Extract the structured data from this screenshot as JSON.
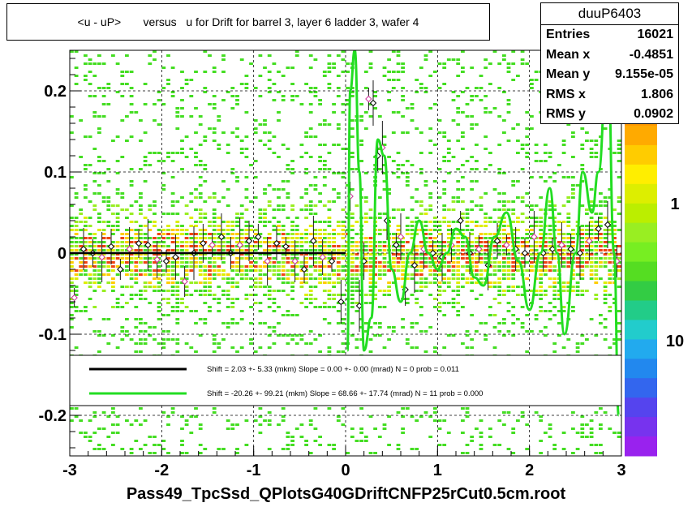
{
  "title": "<u - uP>       versus   u for Drift for barrel 3, layer 6 ladder 3, wafer 4",
  "stats": {
    "name": "duuP6403",
    "rows": [
      {
        "label": "Entries",
        "value": "16021"
      },
      {
        "label": "Mean x",
        "value": "-0.4851"
      },
      {
        "label": "Mean y",
        "value": "9.155e-05"
      },
      {
        "label": "RMS x",
        "value": "1.806"
      },
      {
        "label": "RMS y",
        "value": "0.0902"
      }
    ]
  },
  "footer": "Pass49_TpcSsd_QPlotsG40GDriftCNFP25rCut0.5cm.root",
  "legend": [
    {
      "color": "#000000",
      "text": "Shift =     2.03 +- 5.33 (mkm) Slope =     0.00 +- 0.00 (mrad)  N = 0 prob = 0.011"
    },
    {
      "color": "#22dd22",
      "text": "Shift =   -20.26 +- 99.21 (mkm) Slope =    68.66 +- 17.74 (mrad)  N = 11 prob = 0.000"
    }
  ],
  "colors": {
    "heat_low": "#33dd33",
    "heat_mid": "#ddee00",
    "heat_high": "#ee3311",
    "fit_black": "#000000",
    "fit_green": "#22dd22"
  },
  "chart_data": {
    "type": "heatmap",
    "xlim": [
      -3,
      3
    ],
    "ylim": [
      -0.25,
      0.25
    ],
    "x_ticks": [
      "-3",
      "-2",
      "-1",
      "0",
      "1",
      "2",
      "3"
    ],
    "y_ticks": [
      "0.2",
      "0.1",
      "0",
      "-0.1",
      "-0.2"
    ],
    "z_ticks": [
      "1",
      "10"
    ],
    "profile_points": [
      {
        "x": -2.95,
        "y": -0.055
      },
      {
        "x": -2.85,
        "y": 0.005
      },
      {
        "x": -2.75,
        "y": 0.0
      },
      {
        "x": -2.65,
        "y": -0.005
      },
      {
        "x": -2.55,
        "y": 0.008
      },
      {
        "x": -2.45,
        "y": -0.02
      },
      {
        "x": -2.35,
        "y": 0.005
      },
      {
        "x": -2.25,
        "y": 0.012
      },
      {
        "x": -2.15,
        "y": 0.01
      },
      {
        "x": -2.05,
        "y": -0.008
      },
      {
        "x": -1.95,
        "y": -0.01
      },
      {
        "x": -1.85,
        "y": -0.005
      },
      {
        "x": -1.75,
        "y": -0.035
      },
      {
        "x": -1.65,
        "y": 0.0
      },
      {
        "x": -1.55,
        "y": 0.012
      },
      {
        "x": -1.45,
        "y": 0.01
      },
      {
        "x": -1.35,
        "y": 0.02
      },
      {
        "x": -1.25,
        "y": 0.0
      },
      {
        "x": -1.15,
        "y": 0.01
      },
      {
        "x": -1.05,
        "y": 0.015
      },
      {
        "x": -0.95,
        "y": 0.02
      },
      {
        "x": -0.85,
        "y": -0.01
      },
      {
        "x": -0.75,
        "y": 0.012
      },
      {
        "x": -0.65,
        "y": 0.008
      },
      {
        "x": -0.55,
        "y": -0.01
      },
      {
        "x": -0.45,
        "y": -0.02
      },
      {
        "x": -0.35,
        "y": 0.015
      },
      {
        "x": -0.25,
        "y": -0.005
      },
      {
        "x": -0.15,
        "y": -0.01
      },
      {
        "x": -0.05,
        "y": -0.06
      },
      {
        "x": 0.05,
        "y": 0.07
      },
      {
        "x": 0.15,
        "y": -0.065
      },
      {
        "x": 0.2,
        "y": -0.01
      },
      {
        "x": 0.25,
        "y": 0.19
      },
      {
        "x": 0.3,
        "y": 0.185
      },
      {
        "x": 0.35,
        "y": 0.12
      },
      {
        "x": 0.4,
        "y": 0.13
      },
      {
        "x": 0.45,
        "y": 0.04
      },
      {
        "x": 0.55,
        "y": 0.01
      },
      {
        "x": 0.6,
        "y": 0.02
      },
      {
        "x": 0.65,
        "y": -0.045
      },
      {
        "x": 0.75,
        "y": -0.015
      },
      {
        "x": 0.85,
        "y": 0.005
      },
      {
        "x": 0.95,
        "y": 0.0
      },
      {
        "x": 1.05,
        "y": -0.005
      },
      {
        "x": 1.15,
        "y": 0.01
      },
      {
        "x": 1.25,
        "y": 0.04
      },
      {
        "x": 1.35,
        "y": 0.0
      },
      {
        "x": 1.45,
        "y": 0.005
      },
      {
        "x": 1.55,
        "y": -0.015
      },
      {
        "x": 1.65,
        "y": 0.015
      },
      {
        "x": 1.75,
        "y": 0.01
      },
      {
        "x": 1.85,
        "y": 0.005
      },
      {
        "x": 1.95,
        "y": 0.0
      },
      {
        "x": 2.05,
        "y": 0.02
      },
      {
        "x": 2.15,
        "y": 0.0
      },
      {
        "x": 2.25,
        "y": 0.005
      },
      {
        "x": 2.35,
        "y": 0.01
      },
      {
        "x": 2.45,
        "y": 0.005
      },
      {
        "x": 2.55,
        "y": 0.0
      },
      {
        "x": 2.65,
        "y": 0.015
      },
      {
        "x": 2.75,
        "y": 0.03
      },
      {
        "x": 2.85,
        "y": 0.035
      },
      {
        "x": 2.95,
        "y": -0.01
      }
    ],
    "fit_black": {
      "x_from": -3.0,
      "x_to": 0.0,
      "y": 0.0
    },
    "fit_green_points": [
      {
        "x": 0.02,
        "y": -0.12
      },
      {
        "x": 0.05,
        "y": 0.2
      },
      {
        "x": 0.1,
        "y": 0.25
      },
      {
        "x": 0.15,
        "y": 0.1
      },
      {
        "x": 0.2,
        "y": -0.12
      },
      {
        "x": 0.28,
        "y": -0.08
      },
      {
        "x": 0.35,
        "y": 0.14
      },
      {
        "x": 0.42,
        "y": 0.12
      },
      {
        "x": 0.5,
        "y": -0.02
      },
      {
        "x": 0.6,
        "y": -0.06
      },
      {
        "x": 0.7,
        "y": 0.0
      },
      {
        "x": 0.8,
        "y": 0.04
      },
      {
        "x": 0.9,
        "y": 0.0
      },
      {
        "x": 1.0,
        "y": -0.02
      },
      {
        "x": 1.1,
        "y": 0.0
      },
      {
        "x": 1.2,
        "y": 0.03
      },
      {
        "x": 1.3,
        "y": 0.02
      },
      {
        "x": 1.4,
        "y": -0.03
      },
      {
        "x": 1.5,
        "y": -0.04
      },
      {
        "x": 1.62,
        "y": 0.02
      },
      {
        "x": 1.75,
        "y": 0.05
      },
      {
        "x": 1.88,
        "y": -0.01
      },
      {
        "x": 2.0,
        "y": -0.07
      },
      {
        "x": 2.12,
        "y": 0.0
      },
      {
        "x": 2.22,
        "y": 0.08
      },
      {
        "x": 2.3,
        "y": 0.0
      },
      {
        "x": 2.38,
        "y": -0.1
      },
      {
        "x": 2.5,
        "y": 0.0
      },
      {
        "x": 2.58,
        "y": 0.1
      },
      {
        "x": 2.68,
        "y": 0.05
      },
      {
        "x": 2.75,
        "y": 0.1
      },
      {
        "x": 2.85,
        "y": 0.25
      },
      {
        "x": 2.92,
        "y": 0.0
      },
      {
        "x": 2.97,
        "y": -0.2
      }
    ]
  }
}
